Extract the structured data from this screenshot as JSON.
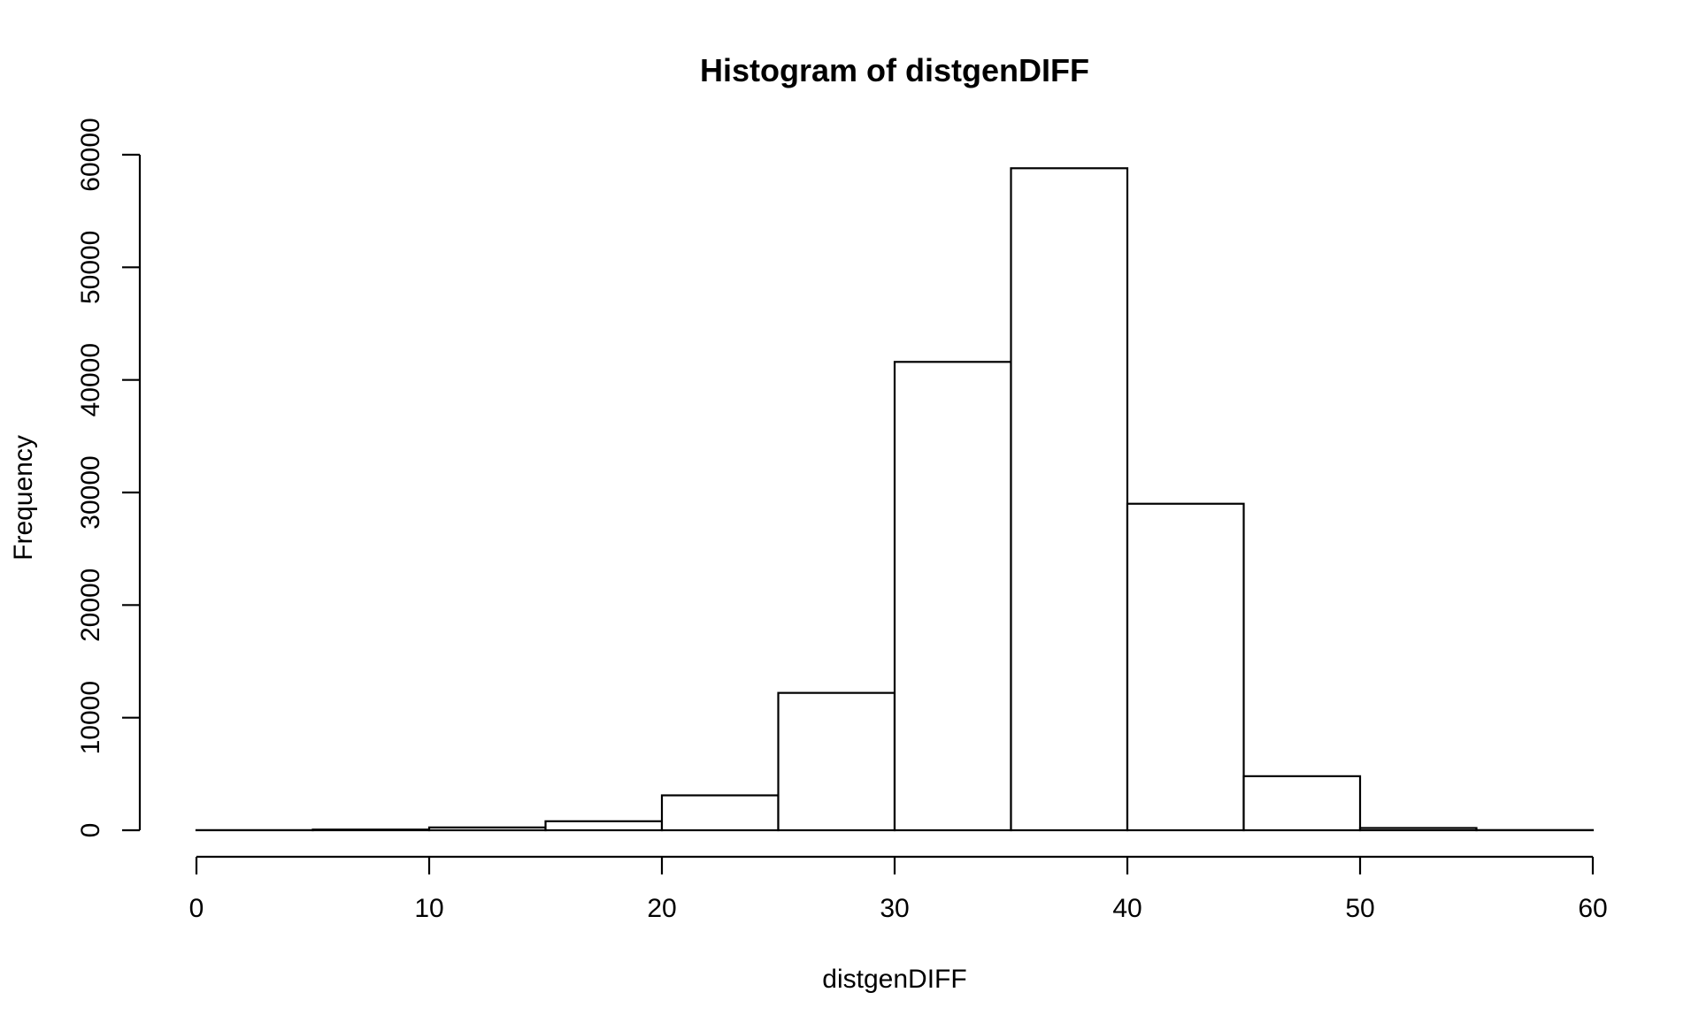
{
  "chart_data": {
    "type": "bar",
    "title": "Histogram of distgenDIFF",
    "xlabel": "distgenDIFF",
    "ylabel": "Frequency",
    "bins": [
      {
        "from": 0,
        "to": 5,
        "count": 10
      },
      {
        "from": 5,
        "to": 10,
        "count": 60
      },
      {
        "from": 10,
        "to": 15,
        "count": 250
      },
      {
        "from": 15,
        "to": 20,
        "count": 800
      },
      {
        "from": 20,
        "to": 25,
        "count": 3100
      },
      {
        "from": 25,
        "to": 30,
        "count": 12200
      },
      {
        "from": 30,
        "to": 35,
        "count": 41600
      },
      {
        "from": 35,
        "to": 40,
        "count": 58800
      },
      {
        "from": 40,
        "to": 45,
        "count": 29000
      },
      {
        "from": 45,
        "to": 50,
        "count": 4800
      },
      {
        "from": 50,
        "to": 55,
        "count": 200
      },
      {
        "from": 55,
        "to": 60,
        "count": 15
      }
    ],
    "xlim": [
      0,
      60
    ],
    "ylim": [
      0,
      60000
    ],
    "x_ticks": [
      "0",
      "10",
      "20",
      "30",
      "40",
      "50",
      "60"
    ],
    "y_ticks": [
      "0",
      "10000",
      "20000",
      "30000",
      "40000",
      "50000",
      "60000"
    ],
    "grid": false,
    "colors": {
      "bar_fill": "#ffffff",
      "bar_stroke": "#000000"
    }
  }
}
